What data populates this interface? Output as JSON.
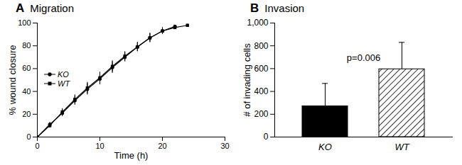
{
  "chart_data": [
    {
      "type": "line",
      "panel": "A",
      "title": "Migration",
      "xlabel": "Time (h)",
      "ylabel": "% wound closure",
      "xlim": [
        0,
        30
      ],
      "xticks": [
        0,
        10,
        20,
        30
      ],
      "ylim": [
        0,
        100
      ],
      "yticks": [
        0,
        20,
        40,
        60,
        80,
        100
      ],
      "legend": "left",
      "series": [
        {
          "name": "KO",
          "color": "#000000",
          "marker": "circle",
          "x": [
            0,
            2,
            4,
            6,
            8,
            10,
            12,
            14,
            16,
            18,
            20,
            22
          ],
          "values": [
            0,
            11,
            21,
            32,
            42,
            51,
            61,
            70,
            79,
            87,
            93,
            97
          ],
          "errors": [
            0,
            2,
            3,
            4,
            5,
            5,
            5,
            4,
            4,
            4,
            3,
            1
          ]
        },
        {
          "name": "WT",
          "color": "#000000",
          "marker": "square",
          "x": [
            0,
            2,
            4,
            6,
            8,
            10,
            12,
            14,
            16,
            18,
            20,
            22,
            24
          ],
          "values": [
            0,
            10,
            22,
            33,
            43,
            52,
            62,
            71,
            79,
            87,
            93,
            96,
            98
          ],
          "errors": [
            0,
            2,
            3,
            4,
            5,
            5,
            5,
            4,
            4,
            4,
            3,
            1,
            1
          ]
        }
      ]
    },
    {
      "type": "bar",
      "panel": "B",
      "title": "Invasion",
      "ylabel": "# of invading cells",
      "categories": [
        "KO",
        "WT"
      ],
      "values": [
        270,
        595
      ],
      "errors": [
        200,
        235
      ],
      "colors": [
        "#000000",
        "#ffffff"
      ],
      "ylim": [
        0,
        1000
      ],
      "yticks": [
        0,
        200,
        400,
        600,
        800,
        1000
      ],
      "annotations": [
        "p=0.006"
      ]
    }
  ]
}
